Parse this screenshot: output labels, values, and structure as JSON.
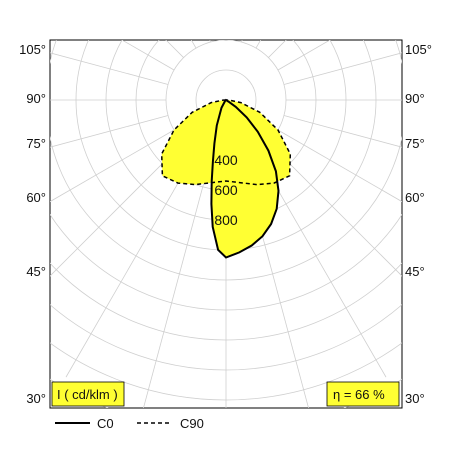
{
  "chart_data": {
    "type": "polar",
    "unit_label": "I ( cd/klm )",
    "efficiency_label": "η = 66 %",
    "angle_labels_left": [
      "105°",
      "90°",
      "75°",
      "60°",
      "45°",
      "30°"
    ],
    "angle_labels_right": [
      "105°",
      "90°",
      "75°",
      "60°",
      "45°",
      "30°"
    ],
    "ring_labels": [
      "400",
      "600",
      "800"
    ],
    "series": [
      {
        "name": "C0",
        "style": "solid",
        "fill": "#ffff33",
        "points": [
          [
            0,
            1050
          ],
          [
            5,
            1020
          ],
          [
            10,
            985
          ],
          [
            15,
            940
          ],
          [
            20,
            880
          ],
          [
            25,
            800
          ],
          [
            30,
            700
          ],
          [
            35,
            580
          ],
          [
            40,
            440
          ],
          [
            45,
            300
          ],
          [
            50,
            180
          ],
          [
            55,
            80
          ],
          [
            58,
            20
          ],
          [
            60,
            0
          ]
        ],
        "points_other_side": [
          [
            0,
            1050
          ],
          [
            -3,
            1000
          ],
          [
            -6,
            850
          ],
          [
            -8,
            700
          ],
          [
            -10,
            550
          ],
          [
            -12,
            420
          ],
          [
            -15,
            300
          ],
          [
            -20,
            180
          ],
          [
            -30,
            60
          ],
          [
            -40,
            10
          ],
          [
            -45,
            0
          ]
        ]
      },
      {
        "name": "C90",
        "style": "dashed",
        "fill": "#ffff33",
        "points": [
          [
            0,
            540
          ],
          [
            10,
            560
          ],
          [
            20,
            600
          ],
          [
            30,
            640
          ],
          [
            40,
            660
          ],
          [
            50,
            560
          ],
          [
            60,
            400
          ],
          [
            70,
            240
          ],
          [
            80,
            100
          ],
          [
            88,
            20
          ],
          [
            90,
            0
          ]
        ]
      }
    ],
    "colors": {
      "fill": "#ffff33",
      "grid": "#cfcfcf",
      "curve": "#000000",
      "badge": "#ffff33"
    }
  },
  "legend": {
    "c0_label": "C0",
    "c90_label": "C90"
  }
}
